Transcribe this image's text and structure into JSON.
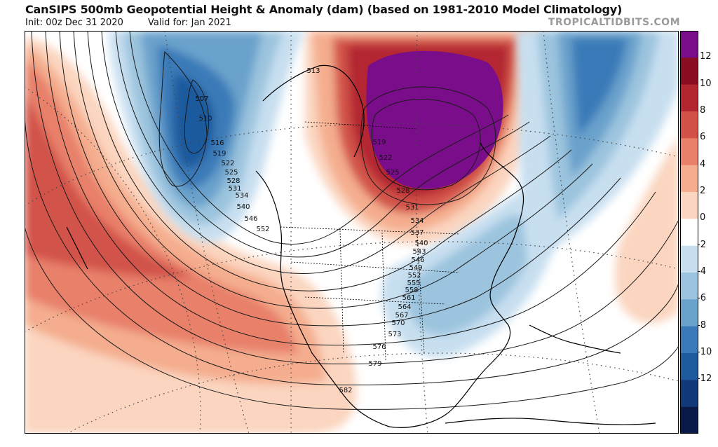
{
  "header": {
    "title": "CanSIPS 500mb Geopotential Height & Anomaly (dam) (based on 1981-2010 Model Climatology)",
    "init": "Init: 00z Dec 31 2020",
    "valid": "Valid for: Jan 2021",
    "brand": "TROPICALTIDBITS.COM"
  },
  "colorbar": {
    "ticks": [
      "12",
      "10",
      "8",
      "6",
      "4",
      "2",
      "0",
      "-2",
      "-4",
      "-6",
      "-8",
      "-10",
      "-12"
    ],
    "colors": [
      "#0a1a48",
      "#123a7a",
      "#1e5a9e",
      "#3a7ab8",
      "#6aa2cc",
      "#9cc4de",
      "#c8dff0",
      "#ffffff",
      "#fbd5c0",
      "#f4ad8e",
      "#e8806a",
      "#d2524a",
      "#b32630",
      "#8a0e22",
      "#7a0e8a"
    ]
  },
  "contours": {
    "labels": [
      "513",
      "507",
      "510",
      "516",
      "519",
      "522",
      "525",
      "528",
      "531",
      "534",
      "540",
      "546",
      "552",
      "519",
      "522",
      "525",
      "528",
      "531",
      "534",
      "537",
      "540",
      "543",
      "546",
      "549",
      "552",
      "555",
      "558",
      "561",
      "564",
      "567",
      "570",
      "573",
      "576",
      "579",
      "582"
    ]
  }
}
